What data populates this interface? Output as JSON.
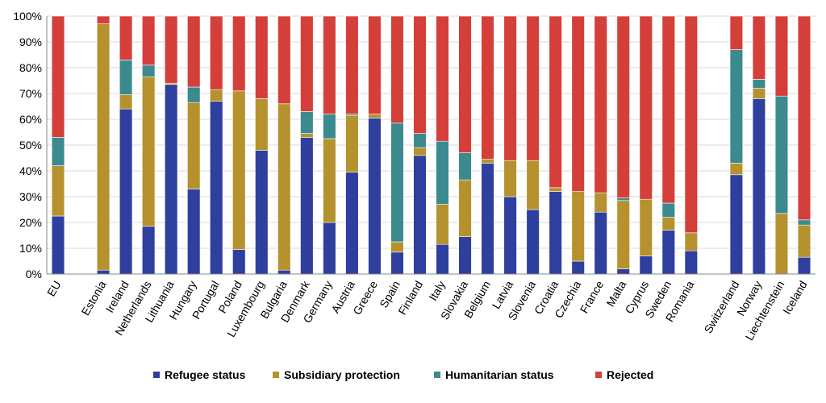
{
  "chart_data": {
    "type": "bar",
    "stacked": true,
    "normalized": true,
    "ylim": [
      0,
      100
    ],
    "y_ticks": [
      "0%",
      "10%",
      "20%",
      "30%",
      "40%",
      "50%",
      "60%",
      "70%",
      "80%",
      "90%",
      "100%"
    ],
    "grid": true,
    "legend_position": "bottom",
    "categories": [
      "EU",
      "",
      "Estonia",
      "Ireland",
      "Netherlands",
      "Lithuania",
      "Hungary",
      "Portugal",
      "Poland",
      "Luxembourg",
      "Bulgaria",
      "Denmark",
      "Germany",
      "Austria",
      "Greece",
      "Spain",
      "Finland",
      "Italy",
      "Slovakia",
      "Belgium",
      "Latvia",
      "Slovenia",
      "Croatia",
      "Czechia",
      "France",
      "Malta",
      "Cyprus",
      "Sweden",
      "Romania",
      "",
      "Switzerland",
      "Norway",
      "Liechtenstein",
      "Iceland"
    ],
    "series": [
      {
        "name": "Refugee status",
        "color": "#2e3f9e",
        "values": [
          22.5,
          null,
          1.5,
          64,
          18.5,
          73.5,
          33,
          67,
          9.5,
          48,
          1.5,
          53,
          20,
          39.5,
          60.5,
          8.5,
          46,
          11.5,
          14.5,
          43,
          30,
          25,
          32,
          5,
          24,
          2,
          7,
          17,
          9,
          null,
          38.5,
          68,
          0,
          6.5
        ]
      },
      {
        "name": "Subsidiary protection",
        "color": "#b5922e",
        "values": [
          19.5,
          null,
          95.5,
          5.5,
          58,
          0.5,
          33.5,
          4.5,
          61.5,
          20,
          64.5,
          1.5,
          32.5,
          22,
          1.5,
          4,
          3,
          15.5,
          22,
          1.5,
          14,
          19,
          1.5,
          27,
          7.5,
          26.5,
          22,
          5,
          7,
          null,
          4.5,
          4,
          23.5,
          12.5
        ]
      },
      {
        "name": "Humanitarian status",
        "color": "#3b8a8f",
        "values": [
          11,
          null,
          0,
          13.5,
          4.5,
          0,
          6,
          0,
          0,
          0,
          0,
          8.5,
          9.5,
          0.5,
          0,
          46,
          5.5,
          24.5,
          10.5,
          0,
          0,
          0,
          0,
          0,
          0,
          1,
          0,
          5.5,
          0,
          null,
          44,
          3.5,
          45.5,
          2
        ]
      },
      {
        "name": "Rejected",
        "color": "#d43f3a",
        "values": [
          47,
          null,
          3,
          17,
          19,
          26,
          27.5,
          28.5,
          29,
          32,
          34,
          37,
          38,
          38,
          38,
          41.5,
          45.5,
          48.5,
          53,
          55.5,
          56,
          56,
          66.5,
          68,
          68.5,
          70.5,
          71,
          72.5,
          84,
          null,
          13,
          24.5,
          31,
          79
        ]
      }
    ]
  }
}
